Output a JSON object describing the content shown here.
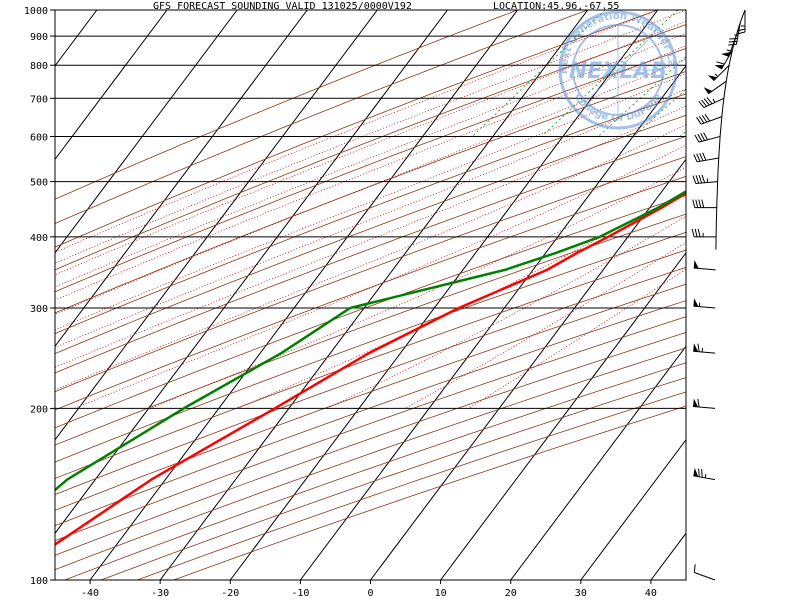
{
  "header": {
    "title": "GFS FORECAST SOUNDING VALID 131025/0000V192",
    "location": "LOCATION:45.96,-67.55"
  },
  "logo": {
    "main": "NEXLAB",
    "ring_top": "Next Generation Weather Lab",
    "ring_bottom": "College Of DuPage"
  },
  "chart_data": {
    "type": "line",
    "title": "GFS FORECAST SOUNDING VALID 131025/0000V192",
    "xlabel": "",
    "ylabel": "",
    "xlim": [
      -45,
      45
    ],
    "ylim": [
      1000,
      100
    ],
    "yscale": "log",
    "x_ticks": [
      -40,
      -30,
      -20,
      -10,
      0,
      10,
      20,
      30,
      40
    ],
    "y_ticks": [
      1000,
      900,
      800,
      700,
      600,
      500,
      400,
      300,
      200,
      100
    ],
    "skew": true,
    "series": [
      {
        "color": "#ff0000",
        "points": [
          [
            1000,
            2.5
          ],
          [
            950,
            3.2
          ],
          [
            925,
            2.7
          ],
          [
            900,
            2.6
          ],
          [
            850,
            2.3
          ],
          [
            800,
            3.2
          ],
          [
            750,
            4.7
          ],
          [
            700,
            6.3
          ],
          [
            650,
            7.5
          ],
          [
            600,
            8.3
          ],
          [
            550,
            7.8
          ],
          [
            500,
            5.2
          ],
          [
            450,
            1.7
          ],
          [
            400,
            -2.8
          ],
          [
            375,
            -5.5
          ],
          [
            350,
            -8.0
          ],
          [
            300,
            -16.5
          ],
          [
            250,
            -24.5
          ],
          [
            200,
            -32.0
          ],
          [
            150,
            -42.0
          ],
          [
            100,
            -52.5
          ]
        ]
      },
      {
        "color": "#008000",
        "points": [
          [
            1000,
            2.0
          ],
          [
            950,
            2.2
          ],
          [
            925,
            2.2
          ],
          [
            900,
            1.8
          ],
          [
            850,
            1.8
          ],
          [
            800,
            2.7
          ],
          [
            750,
            4.4
          ],
          [
            700,
            6.0
          ],
          [
            650,
            7.2
          ],
          [
            600,
            8.0
          ],
          [
            550,
            7.3
          ],
          [
            500,
            4.8
          ],
          [
            450,
            1.2
          ],
          [
            400,
            -4.0
          ],
          [
            375,
            -8.5
          ],
          [
            350,
            -14.0
          ],
          [
            300,
            -32.0
          ],
          [
            250,
            -37.0
          ],
          [
            200,
            -45.0
          ],
          [
            150,
            -54.0
          ],
          [
            100,
            -60.0
          ]
        ]
      }
    ],
    "wind_barbs": [
      {
        "p": 100,
        "dir": 290,
        "spd": 10
      },
      {
        "p": 150,
        "dir": 280,
        "spd": 75
      },
      {
        "p": 200,
        "dir": 275,
        "spd": 60
      },
      {
        "p": 250,
        "dir": 275,
        "spd": 65
      },
      {
        "p": 300,
        "dir": 275,
        "spd": 55
      },
      {
        "p": 350,
        "dir": 275,
        "spd": 50
      },
      {
        "p": 400,
        "dir": 270,
        "spd": 35
      },
      {
        "p": 450,
        "dir": 270,
        "spd": 40
      },
      {
        "p": 500,
        "dir": 265,
        "spd": 45
      },
      {
        "p": 550,
        "dir": 260,
        "spd": 40
      },
      {
        "p": 600,
        "dir": 255,
        "spd": 40
      },
      {
        "p": 650,
        "dir": 250,
        "spd": 40
      },
      {
        "p": 700,
        "dir": 245,
        "spd": 45
      },
      {
        "p": 750,
        "dir": 235,
        "spd": 50
      },
      {
        "p": 800,
        "dir": 225,
        "spd": 55
      },
      {
        "p": 850,
        "dir": 210,
        "spd": 60
      },
      {
        "p": 900,
        "dir": 200,
        "spd": 55
      },
      {
        "p": 950,
        "dir": 190,
        "spd": 35
      },
      {
        "p": 1000,
        "dir": 180,
        "spd": 25
      }
    ],
    "colors": {
      "temperature": "#ff0000",
      "dewpoint": "#008000",
      "isobars": "#000000",
      "isotherms": "#000000",
      "dry_adiabats": "#8b3a1a",
      "moist_adiabats": "#cc0000",
      "mixing_ratio": "#00a000",
      "logo": "#5a8fd8"
    },
    "grid": true
  }
}
